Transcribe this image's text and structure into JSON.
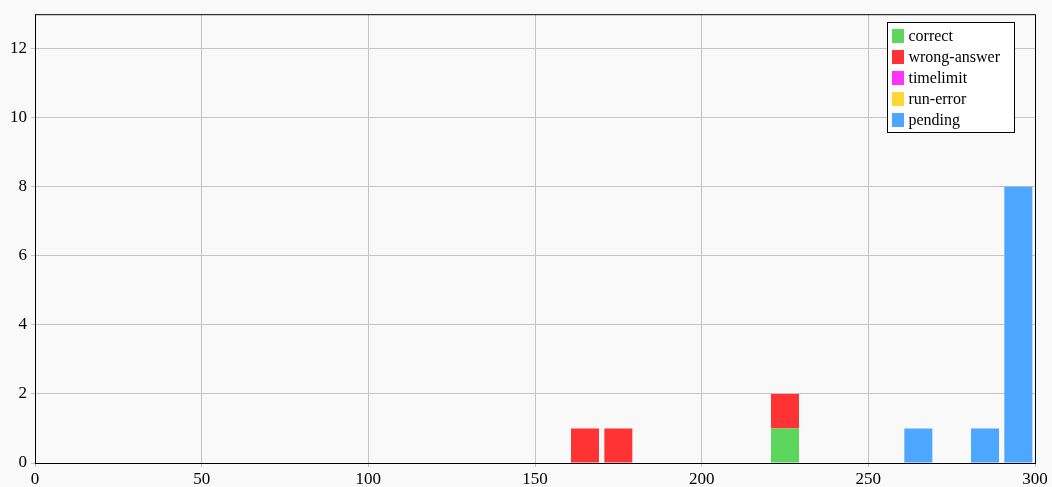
{
  "chart_data": {
    "type": "bar",
    "stacked": true,
    "x": [
      165,
      175,
      225,
      265,
      285,
      295
    ],
    "series": [
      {
        "name": "correct",
        "color": "#5cd65c",
        "values": [
          0,
          0,
          1,
          0,
          0,
          0
        ]
      },
      {
        "name": "wrong-answer",
        "color": "#ff3333",
        "values": [
          1,
          1,
          1,
          0,
          0,
          0
        ]
      },
      {
        "name": "timelimit",
        "color": "#ff33ff",
        "values": [
          0,
          0,
          0,
          0,
          0,
          0
        ]
      },
      {
        "name": "run-error",
        "color": "#ffd633",
        "values": [
          0,
          0,
          0,
          0,
          0,
          0
        ]
      },
      {
        "name": "pending",
        "color": "#4da6ff",
        "values": [
          0,
          0,
          0,
          1,
          1,
          8
        ]
      }
    ],
    "xlim": [
      0,
      300
    ],
    "xticks": [
      0,
      50,
      100,
      150,
      200,
      250,
      300
    ],
    "ylim": [
      0,
      13
    ],
    "yticks": [
      0,
      2,
      4,
      6,
      8,
      10,
      12
    ],
    "grid": true,
    "legend": "top right"
  }
}
